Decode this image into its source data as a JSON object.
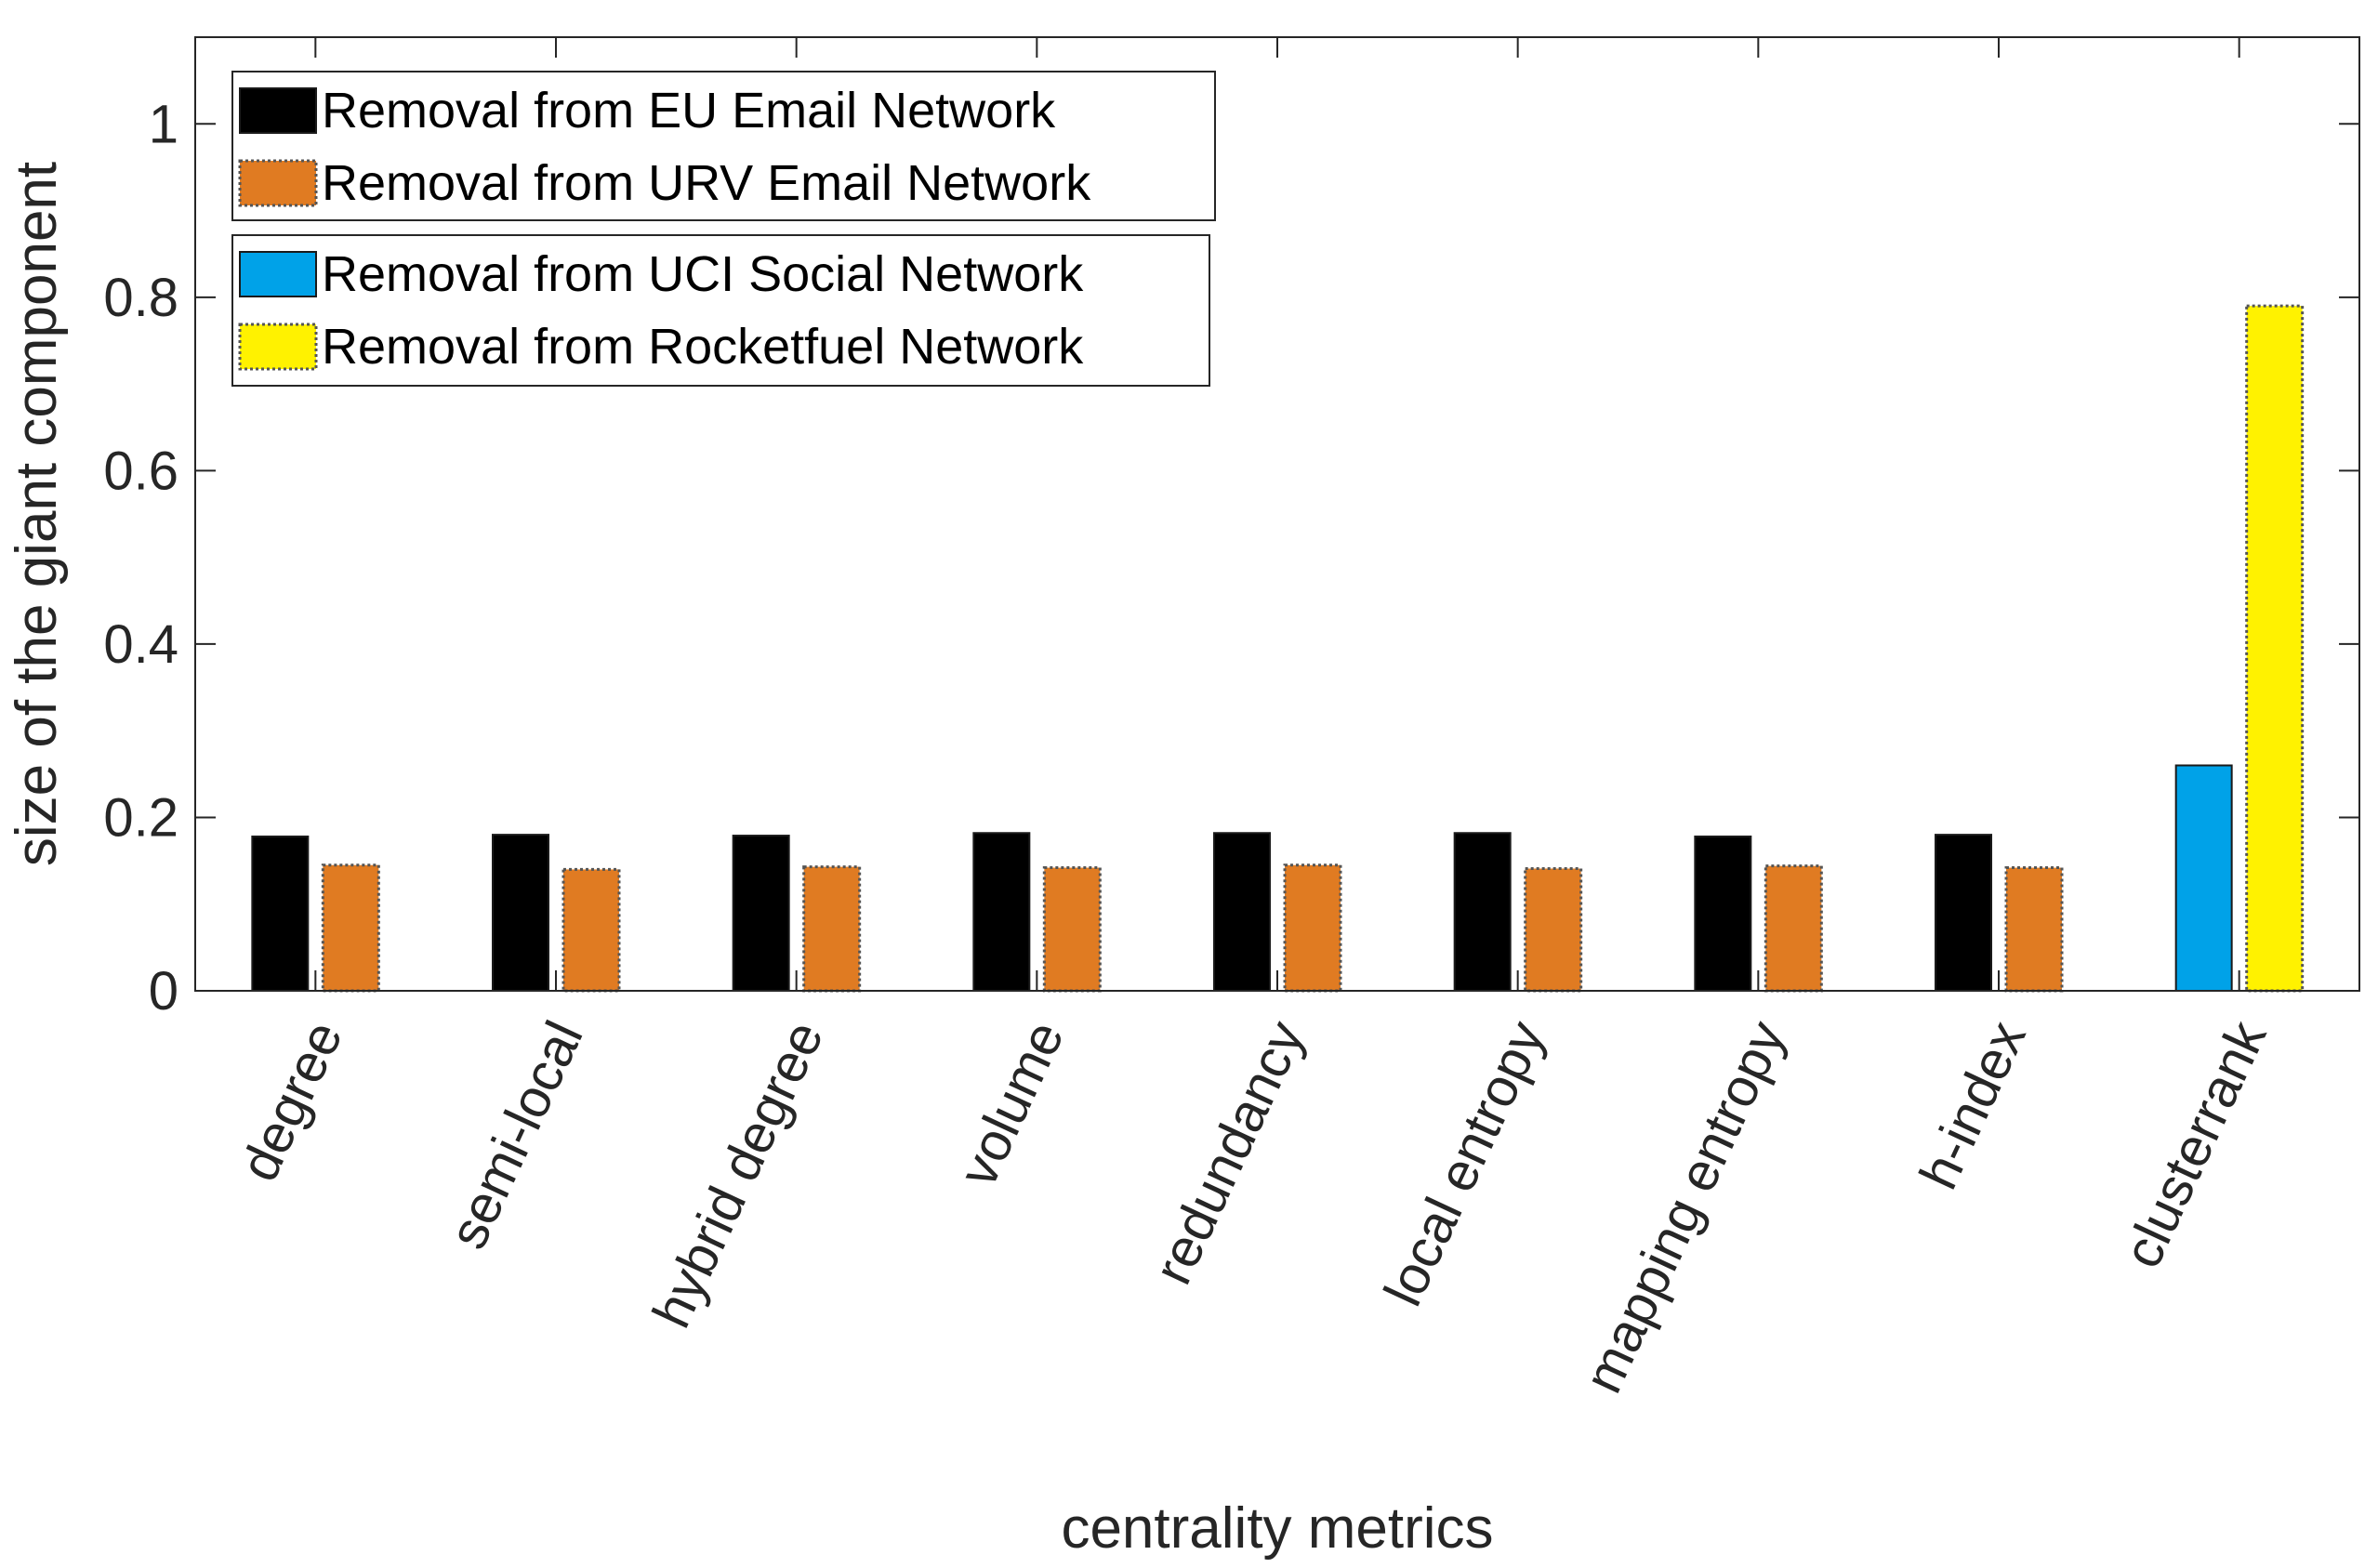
{
  "chart_data": {
    "type": "bar",
    "xlabel": "centrality metrics",
    "ylabel": "size of the giant component",
    "ylim": [
      0,
      1.1
    ],
    "yticks": [
      0,
      0.2,
      0.4,
      0.6,
      0.8,
      1
    ],
    "ytick_labels": [
      "0",
      "0.2",
      "0.4",
      "0.6",
      "0.8",
      "1"
    ],
    "grid": false,
    "categories": [
      "degree",
      "semi-local",
      "hybrid degree",
      "volume",
      "redundancy",
      "local entropy",
      "mapping entropy",
      "h-index",
      "clusterrank"
    ],
    "series": [
      {
        "name": "Removal from EU Email Network",
        "color": "#000000",
        "values": [
          0.178,
          0.18,
          0.179,
          0.182,
          0.182,
          0.182,
          0.178,
          0.18,
          null
        ]
      },
      {
        "name": "Removal from URV Email Network",
        "color": "#E07B22",
        "values": [
          0.145,
          0.14,
          0.143,
          0.142,
          0.145,
          0.141,
          0.144,
          0.142,
          null
        ]
      },
      {
        "name": "Removal from UCI Social Network",
        "color": "#00A2E8",
        "values": [
          null,
          null,
          null,
          null,
          null,
          null,
          null,
          null,
          0.26
        ]
      },
      {
        "name": "Removal from Rocketfuel Network",
        "color": "#FFF200",
        "values": [
          null,
          null,
          null,
          null,
          null,
          null,
          null,
          null,
          0.79
        ]
      }
    ],
    "legends": [
      {
        "placement": "top-left",
        "series": [
          0,
          1
        ]
      },
      {
        "placement": "top-left",
        "series": [
          2,
          3
        ]
      }
    ]
  }
}
